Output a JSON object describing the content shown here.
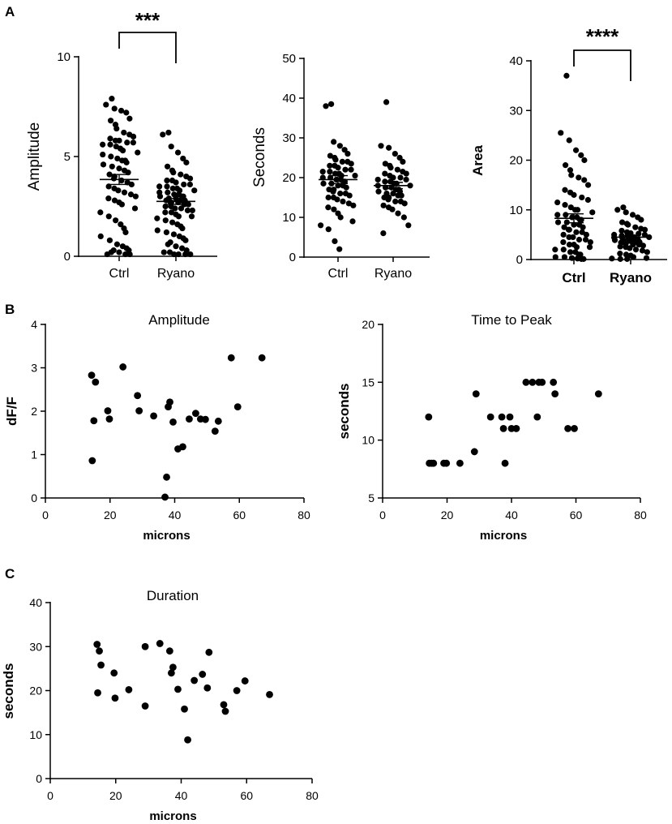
{
  "panels": {
    "a": "A",
    "b": "B",
    "c": "C"
  },
  "chart_data": [
    {
      "type": "scatter",
      "id": "a1",
      "subtype": "dot-plot",
      "title": "",
      "xlabel": "",
      "ylabel": "Amplitude",
      "categories": [
        "Ctrl",
        "Ryano"
      ],
      "ylim": [
        0,
        10
      ],
      "yticks": [
        "0",
        "5",
        "10"
      ],
      "means": [
        3.85,
        2.75
      ],
      "sem": [
        0.25,
        0.15
      ],
      "series": [
        {
          "name": "Ctrl",
          "values": [
            7.9,
            7.6,
            7.4,
            7.3,
            7.2,
            6.9,
            6.8,
            6.6,
            6.4,
            6.2,
            6.1,
            6.0,
            5.9,
            5.8,
            5.8,
            5.7,
            5.7,
            5.6,
            5.6,
            5.5,
            5.4,
            5.3,
            5.2,
            5.1,
            5.0,
            4.9,
            4.8,
            4.8,
            4.7,
            4.6,
            4.5,
            4.4,
            4.3,
            4.2,
            4.1,
            4.0,
            3.9,
            3.8,
            3.7,
            3.6,
            3.5,
            3.4,
            3.3,
            3.2,
            3.1,
            3.0,
            2.9,
            2.8,
            2.7,
            2.6,
            2.4,
            2.2,
            2.0,
            1.8,
            1.6,
            1.4,
            1.2,
            1.0,
            0.8,
            0.6,
            0.5,
            0.4,
            0.3,
            0.3,
            0.2,
            0.2,
            0.1,
            0.1,
            0.1
          ]
        },
        {
          "name": "Ryano",
          "values": [
            6.2,
            6.1,
            5.5,
            5.2,
            4.9,
            4.7,
            4.5,
            4.3,
            4.2,
            4.1,
            4.0,
            3.9,
            3.8,
            3.8,
            3.7,
            3.6,
            3.6,
            3.5,
            3.5,
            3.4,
            3.4,
            3.3,
            3.3,
            3.2,
            3.2,
            3.1,
            3.1,
            3.0,
            3.0,
            3.0,
            2.9,
            2.9,
            2.8,
            2.8,
            2.8,
            2.7,
            2.7,
            2.7,
            2.6,
            2.6,
            2.5,
            2.5,
            2.4,
            2.4,
            2.3,
            2.3,
            2.2,
            2.2,
            2.1,
            2.0,
            2.0,
            1.9,
            1.8,
            1.7,
            1.6,
            1.5,
            1.4,
            1.3,
            1.2,
            1.1,
            1.0,
            0.9,
            0.8,
            0.7,
            0.6,
            0.5,
            0.4,
            0.3,
            0.2,
            0.2,
            0.1,
            0.1,
            0.1,
            0.1
          ]
        }
      ],
      "significance": "***"
    },
    {
      "type": "scatter",
      "id": "a2",
      "subtype": "dot-plot",
      "title": "",
      "xlabel": "",
      "ylabel": "Seconds",
      "categories": [
        "Ctrl",
        "Ryano"
      ],
      "ylim": [
        0,
        50
      ],
      "yticks": [
        "0",
        "10",
        "20",
        "30",
        "40",
        "50"
      ],
      "means": [
        19.5,
        18
      ],
      "sem": [
        1.0,
        0.8
      ],
      "series": [
        {
          "name": "Ctrl",
          "values": [
            38.5,
            38,
            29,
            28,
            27,
            26,
            25.5,
            25,
            24.5,
            24,
            24,
            23.5,
            23,
            23,
            22.5,
            22,
            22,
            21.5,
            21.5,
            21,
            21,
            20.5,
            20.5,
            20,
            20,
            19.5,
            19.5,
            19,
            19,
            18.5,
            18.5,
            18,
            18,
            17.5,
            17,
            17,
            16.5,
            16,
            16,
            15.5,
            15,
            15,
            14.5,
            14,
            13.5,
            13,
            12.5,
            12,
            11,
            10,
            9,
            8,
            7,
            4,
            2
          ]
        },
        {
          "name": "Ryano",
          "values": [
            39,
            28,
            27.5,
            26,
            25,
            24,
            23.5,
            23,
            22.5,
            22,
            21.5,
            21,
            21,
            20.5,
            20,
            20,
            19.5,
            19.5,
            19,
            19,
            18.5,
            18.5,
            18,
            18,
            17.5,
            17.5,
            17,
            17,
            16.5,
            16.5,
            16,
            16,
            15.5,
            15.5,
            15,
            15,
            14.5,
            14,
            14,
            13.5,
            13,
            12.5,
            12,
            11,
            10,
            8,
            6
          ]
        }
      ]
    },
    {
      "type": "scatter",
      "id": "a3",
      "subtype": "dot-plot",
      "title": "",
      "xlabel": "",
      "ylabel": "Area",
      "categories": [
        "Ctrl",
        "Ryano"
      ],
      "ylim": [
        0,
        40
      ],
      "yticks": [
        "0",
        "10",
        "20",
        "30",
        "40"
      ],
      "means": [
        8.3,
        4.5
      ],
      "sem": [
        0.9,
        0.3
      ],
      "series": [
        {
          "name": "Ctrl",
          "values": [
            37,
            25.5,
            24,
            22,
            21,
            20,
            19,
            18,
            17,
            16.5,
            16,
            15,
            14,
            13.5,
            13,
            12.5,
            12,
            11.5,
            11,
            10.5,
            10,
            10,
            9.5,
            9,
            9,
            8.5,
            8.5,
            8,
            8,
            7.5,
            7.5,
            7,
            7,
            6.5,
            6.5,
            6,
            6,
            5.5,
            5.5,
            5,
            5,
            4.5,
            4.5,
            4,
            4,
            3.5,
            3.5,
            3,
            3,
            2.5,
            2.5,
            2,
            2,
            1.5,
            1.5,
            1,
            1,
            0.5,
            0.5,
            0.3,
            0.2,
            0.1,
            0.1
          ]
        },
        {
          "name": "Ryano",
          "values": [
            10.5,
            10,
            9.5,
            9,
            8.5,
            8,
            7.5,
            7.2,
            7,
            6.5,
            6.2,
            6,
            5.8,
            5.5,
            5.3,
            5.2,
            5,
            5,
            4.8,
            4.8,
            4.6,
            4.5,
            4.5,
            4.4,
            4.3,
            4.2,
            4.1,
            4,
            4,
            3.9,
            3.8,
            3.7,
            3.6,
            3.5,
            3.4,
            3.3,
            3.2,
            3,
            3,
            2.8,
            2.6,
            2.5,
            2.3,
            2,
            1.8,
            1.5,
            1.2,
            1,
            0.8,
            0.5,
            0.3,
            0.2,
            0.1,
            0.1
          ]
        }
      ],
      "significance": "****"
    },
    {
      "type": "scatter",
      "id": "b1",
      "title": "Amplitude",
      "xlabel": "microns",
      "ylabel": "dF/F",
      "xlim": [
        0,
        80
      ],
      "ylim": [
        0,
        4
      ],
      "xticks": [
        "0",
        "20",
        "40",
        "60",
        "80"
      ],
      "yticks": [
        "0",
        "1",
        "2",
        "3",
        "4"
      ],
      "x": [
        14.3,
        14.5,
        15.0,
        15.5,
        19.3,
        19.8,
        24.0,
        28.5,
        29.0,
        33.5,
        37.0,
        37.5,
        38.0,
        38.5,
        39.5,
        41.0,
        42.5,
        44.5,
        46.5,
        48.0,
        49.5,
        52.5,
        53.5,
        57.5,
        59.5,
        67.0
      ],
      "y": [
        2.83,
        0.86,
        1.78,
        2.67,
        2.01,
        1.82,
        3.02,
        2.36,
        2.01,
        1.89,
        0.02,
        0.48,
        2.1,
        2.21,
        1.75,
        1.13,
        1.18,
        1.82,
        1.95,
        1.82,
        1.81,
        1.54,
        1.77,
        3.23,
        2.1,
        3.23
      ]
    },
    {
      "type": "scatter",
      "id": "b2",
      "title": "Time to Peak",
      "xlabel": "microns",
      "ylabel": "seconds",
      "xlim": [
        0,
        80
      ],
      "ylim": [
        5,
        20
      ],
      "xticks": [
        "0",
        "20",
        "40",
        "60",
        "80"
      ],
      "yticks": [
        "5",
        "10",
        "15",
        "20"
      ],
      "x": [
        14.3,
        14.5,
        15.2,
        15.8,
        19.0,
        19.8,
        24.0,
        28.5,
        29.0,
        33.5,
        37.0,
        37.5,
        38.0,
        39.5,
        40.0,
        41.5,
        44.5,
        46.5,
        48.0,
        48.5,
        49.5,
        53.0,
        53.5,
        57.5,
        59.5,
        67.0
      ],
      "y": [
        12,
        8,
        8,
        8,
        8,
        8,
        8,
        9,
        14,
        12,
        12,
        11,
        8,
        12,
        11,
        11,
        15,
        15,
        12,
        15,
        15,
        15,
        14,
        11,
        11,
        14
      ]
    },
    {
      "type": "scatter",
      "id": "c1",
      "title": "Duration",
      "xlabel": "microns",
      "ylabel": "seconds",
      "xlim": [
        0,
        80
      ],
      "ylim": [
        0,
        40
      ],
      "xticks": [
        "0",
        "20",
        "40",
        "60",
        "80"
      ],
      "yticks": [
        "0",
        "10",
        "20",
        "30",
        "40"
      ],
      "x": [
        14.3,
        14.5,
        15.0,
        15.5,
        19.5,
        19.8,
        24.0,
        29.0,
        29.0,
        33.5,
        36.5,
        37.0,
        37.5,
        39.0,
        41.0,
        42.0,
        44.0,
        46.5,
        48.0,
        48.5,
        53.0,
        53.5,
        57.0,
        59.5,
        67.0
      ],
      "y": [
        30.5,
        19.5,
        29.0,
        25.8,
        24.0,
        18.3,
        20.2,
        30.0,
        16.5,
        30.7,
        29.0,
        24.0,
        25.3,
        20.3,
        15.8,
        8.8,
        22.3,
        23.7,
        20.6,
        28.7,
        16.8,
        15.3,
        20.0,
        22.2,
        19.1
      ]
    }
  ]
}
